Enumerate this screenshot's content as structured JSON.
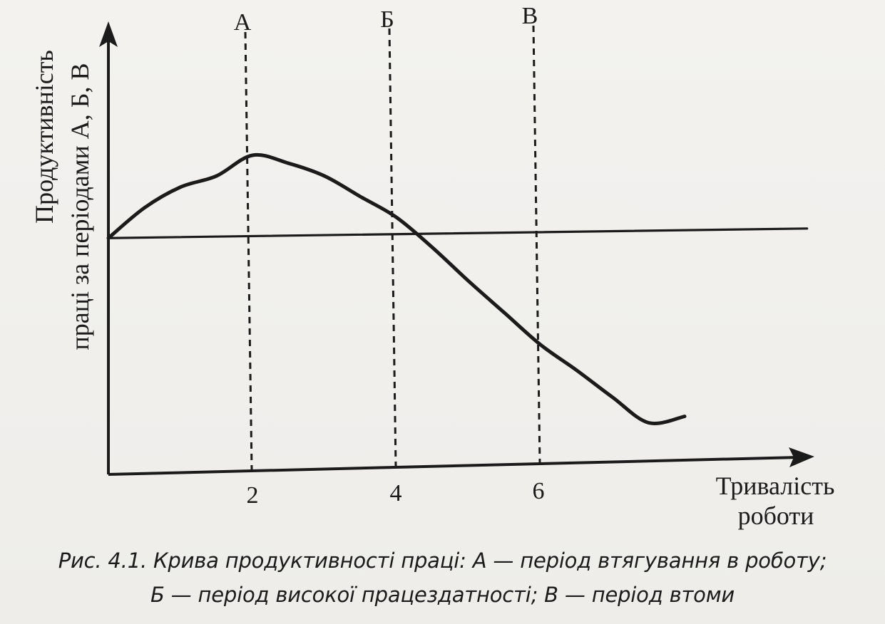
{
  "chart_data": {
    "type": "line",
    "title": "",
    "xlabel_lines": [
      "Тривалість",
      "роботи"
    ],
    "ylabel_lines": [
      "Продуктивність",
      "праці за періодами А, Б, В"
    ],
    "x_ticks": [
      "2",
      "4",
      "6"
    ],
    "xlim": [
      0,
      9
    ],
    "ylim": [
      0,
      10
    ],
    "grid": false,
    "legend": "none",
    "series": [
      {
        "x": [
          0,
          0.5,
          1,
          1.5,
          2,
          2.5,
          3,
          3.5,
          4,
          4.5,
          5,
          5.5,
          6,
          6.5,
          7,
          7.5,
          8
        ],
        "y": [
          7.4,
          8.35,
          9.0,
          9.35,
          10.0,
          9.75,
          9.35,
          8.7,
          8.05,
          7.1,
          6.05,
          5.05,
          4.05,
          3.25,
          2.4,
          1.6,
          1.8
        ]
      },
      {
        "x": [
          0,
          9.7
        ],
        "y": [
          7.4,
          7.7
        ]
      }
    ],
    "periods": [
      {
        "label": "А",
        "x": 2
      },
      {
        "label": "Б",
        "x": 4
      },
      {
        "label": "В",
        "x": 6
      }
    ],
    "colors": {
      "ink": "#1b1b1b",
      "paper": "#f2f1ee"
    }
  },
  "caption": {
    "line1": "Рис. 4.1. Крива продуктивності праці: А — період втягування в роботу;",
    "line2": "Б — період високої працездатності; В — період втоми"
  }
}
